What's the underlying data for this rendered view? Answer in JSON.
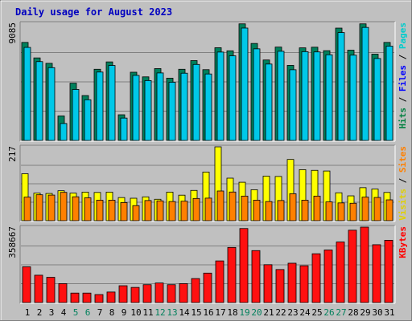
{
  "title": "Daily usage for August 2023",
  "chart_data": [
    {
      "type": "bar",
      "panel": "hits-files-pages",
      "y_max_label": "9085",
      "ylim": [
        0,
        9085
      ],
      "legend": [
        "Pages",
        "Files",
        "Hits"
      ],
      "legend_colors": {
        "Pages": "#00cccc",
        "Files": "#0000ff",
        "Hits": "#008040"
      },
      "categories": [
        "1",
        "2",
        "3",
        "4",
        "5",
        "6",
        "7",
        "8",
        "9",
        "10",
        "11",
        "12",
        "13",
        "14",
        "15",
        "16",
        "17",
        "18",
        "19",
        "20",
        "21",
        "22",
        "23",
        "24",
        "25",
        "26",
        "27",
        "28",
        "29",
        "30",
        "31"
      ],
      "series": [
        {
          "name": "Hits",
          "color": "#00805c",
          "values": [
            7600,
            6400,
            5980,
            1900,
            4440,
            3480,
            5520,
            6090,
            1990,
            5290,
            4930,
            5570,
            4830,
            5520,
            6190,
            5490,
            7190,
            6950,
            9040,
            7520,
            6240,
            7240,
            5820,
            7180,
            7230,
            6960,
            8710,
            7000,
            9040,
            6690,
            7600
          ]
        },
        {
          "name": "Files",
          "color": "#00c8e8",
          "values": [
            7400,
            6300,
            5830,
            1500,
            4140,
            3340,
            5490,
            6000,
            1920,
            5230,
            4830,
            5420,
            4700,
            5400,
            6080,
            5340,
            7040,
            6750,
            8900,
            7290,
            6110,
            7100,
            5670,
            7070,
            7050,
            6830,
            8550,
            6800,
            8950,
            6540,
            7500
          ]
        }
      ]
    },
    {
      "type": "bar",
      "panel": "visits-sites",
      "y_max_label": "217",
      "ylim": [
        0,
        217
      ],
      "legend": [
        "Sites",
        "Visits"
      ],
      "legend_colors": {
        "Sites": "#ff8000",
        "Visits": "#e0d000"
      },
      "series": [
        {
          "name": "Visits",
          "color": "#ffff00",
          "values": [
            138,
            81,
            80,
            88,
            81,
            84,
            83,
            84,
            68,
            66,
            70,
            63,
            84,
            75,
            89,
            143,
            217,
            125,
            113,
            91,
            131,
            130,
            180,
            150,
            148,
            146,
            82,
            73,
            97,
            93,
            83
          ]
        },
        {
          "name": "Sites",
          "color": "#ff8000",
          "values": [
            74,
            81,
            80,
            88,
            75,
            72,
            65,
            65,
            58,
            49,
            64,
            63,
            61,
            62,
            70,
            71,
            92,
            89,
            77,
            65,
            61,
            64,
            84,
            65,
            77,
            60,
            57,
            56,
            74,
            73,
            66
          ]
        }
      ]
    },
    {
      "type": "bar",
      "panel": "kbytes",
      "y_max_label": "358667",
      "ylim": [
        0,
        358667
      ],
      "legend": [
        "KBytes"
      ],
      "legend_colors": {
        "KBytes": "#ff0000"
      },
      "series": [
        {
          "name": "KBytes",
          "color": "#ff1010",
          "values": [
            170000,
            130000,
            120000,
            90000,
            45000,
            45000,
            38000,
            50000,
            80000,
            72000,
            85000,
            93000,
            85000,
            90000,
            114000,
            140000,
            198000,
            262000,
            352000,
            247000,
            180000,
            157000,
            187000,
            175000,
            232000,
            250000,
            288000,
            344000,
            358667,
            275000,
            296000
          ]
        }
      ]
    }
  ],
  "x_tick_weekend_color": "#00805c",
  "x_tick_weekend": [
    "5",
    "6",
    "12",
    "13",
    "19",
    "20",
    "26",
    "27"
  ]
}
